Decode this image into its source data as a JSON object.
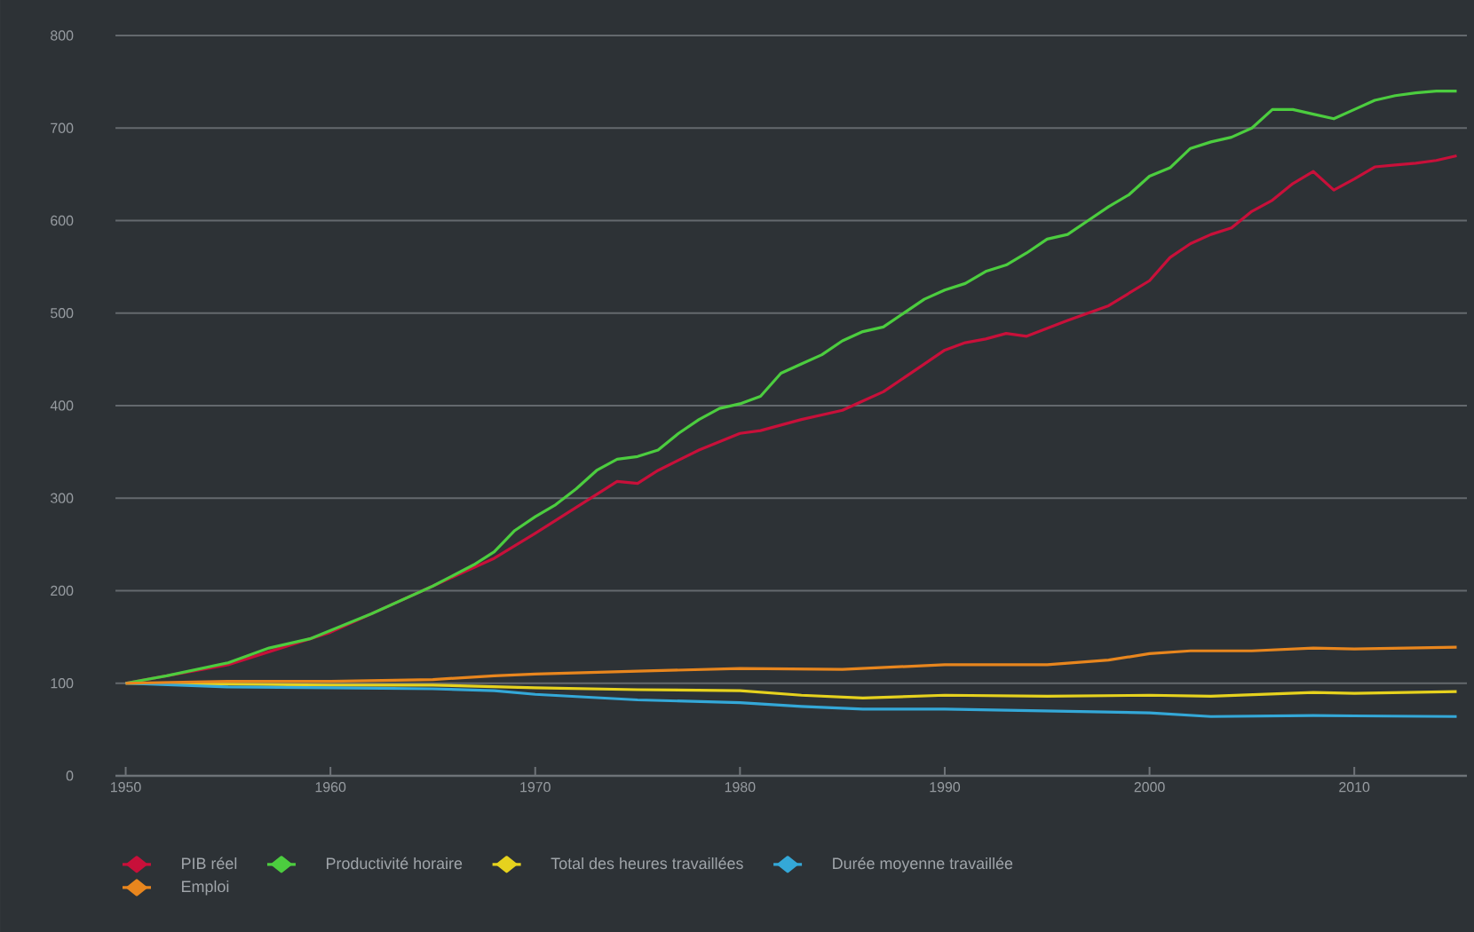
{
  "chart_data": {
    "type": "line",
    "xlim": [
      1949.5,
      2015.5
    ],
    "ylim": [
      0,
      800
    ],
    "xticks": [
      1950,
      1960,
      1970,
      1980,
      1990,
      2000,
      2010
    ],
    "yticks": [
      0,
      100,
      200,
      300,
      400,
      500,
      600,
      700,
      800
    ],
    "grid": "y",
    "legend": "bottom",
    "line_style": "solid",
    "series": [
      {
        "name": "PIB réel",
        "color": "#c8103a",
        "x": [
          1950,
          1955,
          1960,
          1965,
          1968,
          1970,
          1972,
          1974,
          1975,
          1976,
          1978,
          1980,
          1981,
          1983,
          1985,
          1986,
          1987,
          1989,
          1990,
          1991,
          1992,
          1993,
          1994,
          1996,
          1998,
          2000,
          2001,
          2002,
          2003,
          2004,
          2005,
          2006,
          2007,
          2008,
          2009,
          2010,
          2011,
          2012,
          2013,
          2014,
          2015
        ],
        "values": [
          100,
          120,
          155,
          205,
          235,
          262,
          290,
          318,
          316,
          330,
          352,
          370,
          373,
          385,
          395,
          405,
          415,
          445,
          460,
          468,
          472,
          478,
          475,
          492,
          508,
          535,
          560,
          575,
          585,
          592,
          610,
          622,
          640,
          653,
          633,
          645,
          658,
          660,
          662,
          665,
          670
        ]
      },
      {
        "name": "Productivité horaire",
        "color": "#4ccd3f",
        "x": [
          1950,
          1952,
          1955,
          1957,
          1959,
          1962,
          1965,
          1967,
          1968,
          1969,
          1970,
          1971,
          1972,
          1973,
          1974,
          1975,
          1976,
          1977,
          1978,
          1979,
          1980,
          1981,
          1982,
          1983,
          1984,
          1985,
          1986,
          1987,
          1988,
          1989,
          1990,
          1991,
          1992,
          1993,
          1994,
          1995,
          1996,
          1997,
          1998,
          1999,
          2000,
          2001,
          2002,
          2003,
          2004,
          2005,
          2006,
          2007,
          2008,
          2009,
          2010,
          2011,
          2012,
          2013,
          2014,
          2015
        ],
        "values": [
          100,
          108,
          122,
          138,
          148,
          175,
          205,
          228,
          242,
          265,
          280,
          293,
          310,
          330,
          342,
          345,
          352,
          370,
          385,
          397,
          402,
          410,
          435,
          445,
          455,
          470,
          480,
          485,
          500,
          515,
          525,
          532,
          545,
          552,
          565,
          580,
          585,
          600,
          615,
          628,
          648,
          657,
          678,
          685,
          690,
          700,
          720,
          720,
          715,
          710,
          720,
          730,
          735,
          738,
          740,
          740
        ]
      },
      {
        "name": "Total des heures travaillées",
        "color": "#e6d21e",
        "x": [
          1950,
          1955,
          1960,
          1965,
          1970,
          1975,
          1980,
          1983,
          1986,
          1990,
          1995,
          2000,
          2003,
          2008,
          2010,
          2015
        ],
        "values": [
          100,
          99,
          98,
          98,
          95,
          93,
          92,
          87,
          84,
          87,
          86,
          87,
          86,
          90,
          89,
          91
        ]
      },
      {
        "name": "Durée moyenne travaillée",
        "color": "#34a8d8",
        "x": [
          1950,
          1955,
          1960,
          1965,
          1968,
          1970,
          1975,
          1980,
          1983,
          1986,
          1990,
          1995,
          2000,
          2003,
          2008,
          2015
        ],
        "values": [
          100,
          96,
          95,
          94,
          92,
          88,
          82,
          79,
          75,
          72,
          72,
          70,
          68,
          64,
          65,
          64
        ]
      },
      {
        "name": "Emploi",
        "color": "#e8861e",
        "x": [
          1950,
          1955,
          1960,
          1965,
          1968,
          1970,
          1975,
          1980,
          1985,
          1990,
          1995,
          1998,
          2000,
          2002,
          2005,
          2008,
          2010,
          2015
        ],
        "values": [
          100,
          102,
          102,
          104,
          108,
          110,
          113,
          116,
          115,
          120,
          120,
          125,
          132,
          135,
          135,
          138,
          137,
          139
        ]
      }
    ]
  }
}
